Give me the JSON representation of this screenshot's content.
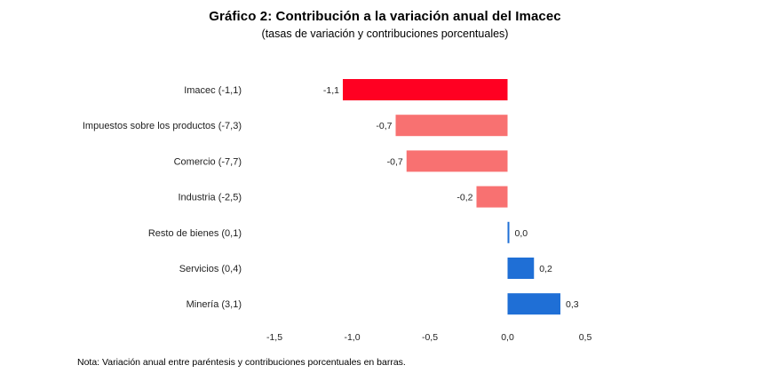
{
  "chart_data": {
    "type": "bar",
    "orientation": "horizontal",
    "title": "Gráfico 2: Contribución a la variación anual del Imacec",
    "subtitle": "(tasas de variación y contribuciones porcentuales)",
    "categories": [
      "Imacec (-1,1)",
      "Impuestos sobre los productos (-7,3)",
      "Comercio (-7,7)",
      "Industria (-2,5)",
      "Resto de bienes (0,1)",
      "Servicios (0,4)",
      "Minería (3,1)"
    ],
    "values": [
      -1.06,
      -0.72,
      -0.65,
      -0.2,
      0.01,
      0.17,
      0.34
    ],
    "value_labels": [
      "-1,1",
      "-0,7",
      "-0,7",
      "-0,2",
      "0,0",
      "0,2",
      "0,3"
    ],
    "xlim": [
      -1.5,
      0.5
    ],
    "xticks": [
      -1.5,
      -1.0,
      -0.5,
      0.0,
      0.5
    ],
    "xtick_labels": [
      "-1,5",
      "-1,0",
      "-0,5",
      "0,0",
      "0,5"
    ],
    "bar_colors": [
      "#ff0022",
      "#f87171",
      "#f87171",
      "#f87171",
      "#1f6fd6",
      "#1f6fd6",
      "#1f6fd6"
    ],
    "grid": false,
    "legend": "none",
    "note": "Nota: Variación anual entre paréntesis y contribuciones porcentuales en barras."
  }
}
